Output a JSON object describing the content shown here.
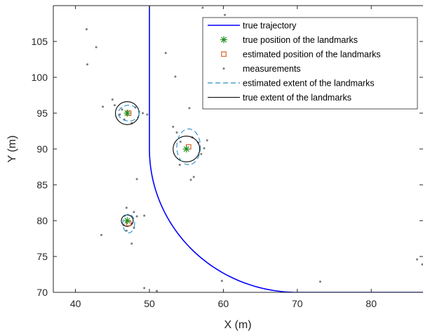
{
  "chart_data": {
    "type": "line",
    "title": "",
    "xlabel": "X (m)",
    "ylabel": "Y (m)",
    "xlim": [
      37,
      87
    ],
    "ylim": [
      70,
      110
    ],
    "xticks": [
      40,
      50,
      60,
      70,
      80
    ],
    "yticks": [
      70,
      75,
      80,
      85,
      90,
      95,
      100,
      105
    ],
    "grid": false,
    "legend_position": "top-right",
    "colors": {
      "trajectory": "#0000ff",
      "true_position": "#1f8f1f",
      "estimated_position": "#d95319",
      "measurements": "#7a7a7a",
      "estimated_extent": "#2b8fc7",
      "true_extent": "#000000"
    },
    "legend": [
      {
        "key": "trajectory",
        "label": "true trajectory"
      },
      {
        "key": "true_position",
        "label": "true position of the landmarks"
      },
      {
        "key": "estimated_position",
        "label": "estimated position of the landmarks"
      },
      {
        "key": "measurements",
        "label": "measurements"
      },
      {
        "key": "estimated_extent",
        "label": "estimated extent of the landmarks"
      },
      {
        "key": "true_extent",
        "label": "true extent of the landmarks"
      }
    ],
    "trajectory": {
      "x_straight": 50,
      "corner_center": [
        70,
        90
      ],
      "corner_radius": 20,
      "y_end": 70,
      "x_end": 87
    },
    "landmarks_true": [
      {
        "x": 47,
        "y": 95,
        "radius": 1.6
      },
      {
        "x": 55,
        "y": 90,
        "radius": 1.8
      },
      {
        "x": 47,
        "y": 80,
        "radius": 0.8
      }
    ],
    "landmarks_estimated": [
      {
        "x": 47.2,
        "y": 95.0,
        "rx": 1.4,
        "ry": 1.1
      },
      {
        "x": 55.3,
        "y": 90.3,
        "rx": 1.6,
        "ry": 2.5
      },
      {
        "x": 47.2,
        "y": 79.6,
        "rx": 0.8,
        "ry": 1.3
      }
    ],
    "measurements": [
      [
        41.5,
        106.7
      ],
      [
        42.8,
        104.2
      ],
      [
        41.6,
        101.8
      ],
      [
        52.2,
        103.4
      ],
      [
        53.5,
        100.1
      ],
      [
        57.2,
        109.7
      ],
      [
        60.2,
        108.7
      ],
      [
        43.7,
        95.9
      ],
      [
        45.0,
        96.9
      ],
      [
        45.3,
        96.1
      ],
      [
        46.3,
        95.5
      ],
      [
        46.0,
        94.8
      ],
      [
        46.6,
        94.1
      ],
      [
        47.6,
        93.6
      ],
      [
        48.1,
        95.8
      ],
      [
        48.6,
        95.2
      ],
      [
        49.1,
        95.0
      ],
      [
        49.7,
        94.8
      ],
      [
        53.2,
        93.1
      ],
      [
        53.7,
        92.3
      ],
      [
        55.4,
        95.7
      ],
      [
        54.2,
        91.0
      ],
      [
        55.8,
        91.6
      ],
      [
        56.6,
        90.9
      ],
      [
        57.0,
        89.3
      ],
      [
        57.4,
        90.1
      ],
      [
        57.8,
        91.2
      ],
      [
        54.1,
        87.8
      ],
      [
        55.6,
        85.7
      ],
      [
        56.0,
        86.1
      ],
      [
        48.3,
        85.8
      ],
      [
        46.9,
        81.8
      ],
      [
        47.9,
        81.2
      ],
      [
        48.3,
        80.6
      ],
      [
        46.5,
        79.4
      ],
      [
        47.6,
        79.6
      ],
      [
        47.9,
        79.0
      ],
      [
        46.9,
        78.6
      ],
      [
        43.5,
        78.0
      ],
      [
        47.6,
        76.8
      ],
      [
        49.3,
        80.7
      ],
      [
        49.3,
        70.6
      ],
      [
        51.0,
        70.2
      ],
      [
        59.8,
        71.6
      ],
      [
        73.1,
        71.5
      ],
      [
        86.2,
        74.6
      ],
      [
        86.9,
        73.9
      ]
    ]
  }
}
